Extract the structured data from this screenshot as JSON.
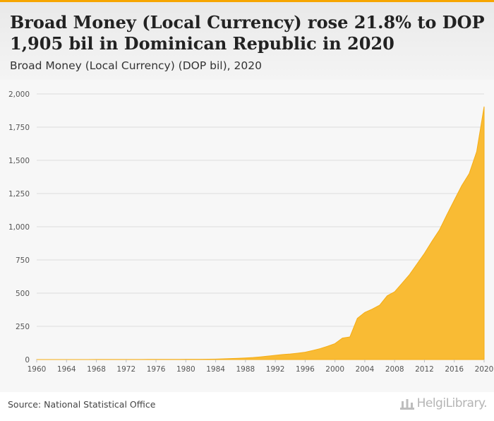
{
  "header": {
    "title": "Broad Money (Local Currency) rose 21.8% to DOP 1,905 bil in Dominican Republic in 2020",
    "subtitle": "Broad Money (Local Currency) (DOP bil), 2020"
  },
  "footer": {
    "source": "Source: National Statistical Office",
    "brand": "HelgiLibrary."
  },
  "colors": {
    "accent": "#f7a600",
    "area_fill": "#f9bb34",
    "grid": "#dcdcdc"
  },
  "chart_data": {
    "type": "area",
    "title": "Broad Money (Local Currency) rose 21.8% to DOP 1,905 bil in Dominican Republic in 2020",
    "subtitle": "Broad Money (Local Currency) (DOP bil), 2020",
    "xlabel": "",
    "ylabel": "",
    "xlim": [
      1960,
      2020
    ],
    "ylim": [
      0,
      2000
    ],
    "y_ticks": [
      0,
      250,
      500,
      750,
      1000,
      1250,
      1500,
      1750,
      2000
    ],
    "y_tick_labels": [
      "0",
      "250",
      "500",
      "750",
      "1,000",
      "1,250",
      "1,500",
      "1,750",
      "2,000"
    ],
    "x_ticks": [
      1960,
      1964,
      1968,
      1972,
      1976,
      1980,
      1984,
      1988,
      1992,
      1996,
      2000,
      2004,
      2008,
      2012,
      2016,
      2020
    ],
    "x_tick_labels": [
      "1960",
      "1964",
      "1968",
      "1972",
      "1976",
      "1980",
      "1984",
      "1988",
      "1992",
      "1996",
      "2000",
      "2004",
      "2008",
      "2012",
      "2016",
      "2020"
    ],
    "grid": true,
    "legend": "none",
    "x": [
      1960,
      1961,
      1962,
      1963,
      1964,
      1965,
      1966,
      1967,
      1968,
      1969,
      1970,
      1971,
      1972,
      1973,
      1974,
      1975,
      1976,
      1977,
      1978,
      1979,
      1980,
      1981,
      1982,
      1983,
      1984,
      1985,
      1986,
      1987,
      1988,
      1989,
      1990,
      1991,
      1992,
      1993,
      1994,
      1995,
      1996,
      1997,
      1998,
      1999,
      2000,
      2001,
      2002,
      2003,
      2004,
      2005,
      2006,
      2007,
      2008,
      2009,
      2010,
      2011,
      2012,
      2013,
      2014,
      2015,
      2016,
      2017,
      2018,
      2019,
      2020
    ],
    "values": [
      0.2,
      0.2,
      0.2,
      0.3,
      0.3,
      0.3,
      0.3,
      0.3,
      0.4,
      0.4,
      0.5,
      0.5,
      0.6,
      0.7,
      0.9,
      1.0,
      1.1,
      1.3,
      1.4,
      1.6,
      1.8,
      2.0,
      2.2,
      2.6,
      3.2,
      5,
      7,
      9,
      12,
      15,
      20,
      26,
      32,
      38,
      42,
      48,
      55,
      68,
      82,
      100,
      120,
      162,
      170,
      310,
      355,
      380,
      410,
      480,
      510,
      575,
      640,
      720,
      800,
      890,
      975,
      1090,
      1200,
      1310,
      1400,
      1565,
      1905
    ]
  }
}
